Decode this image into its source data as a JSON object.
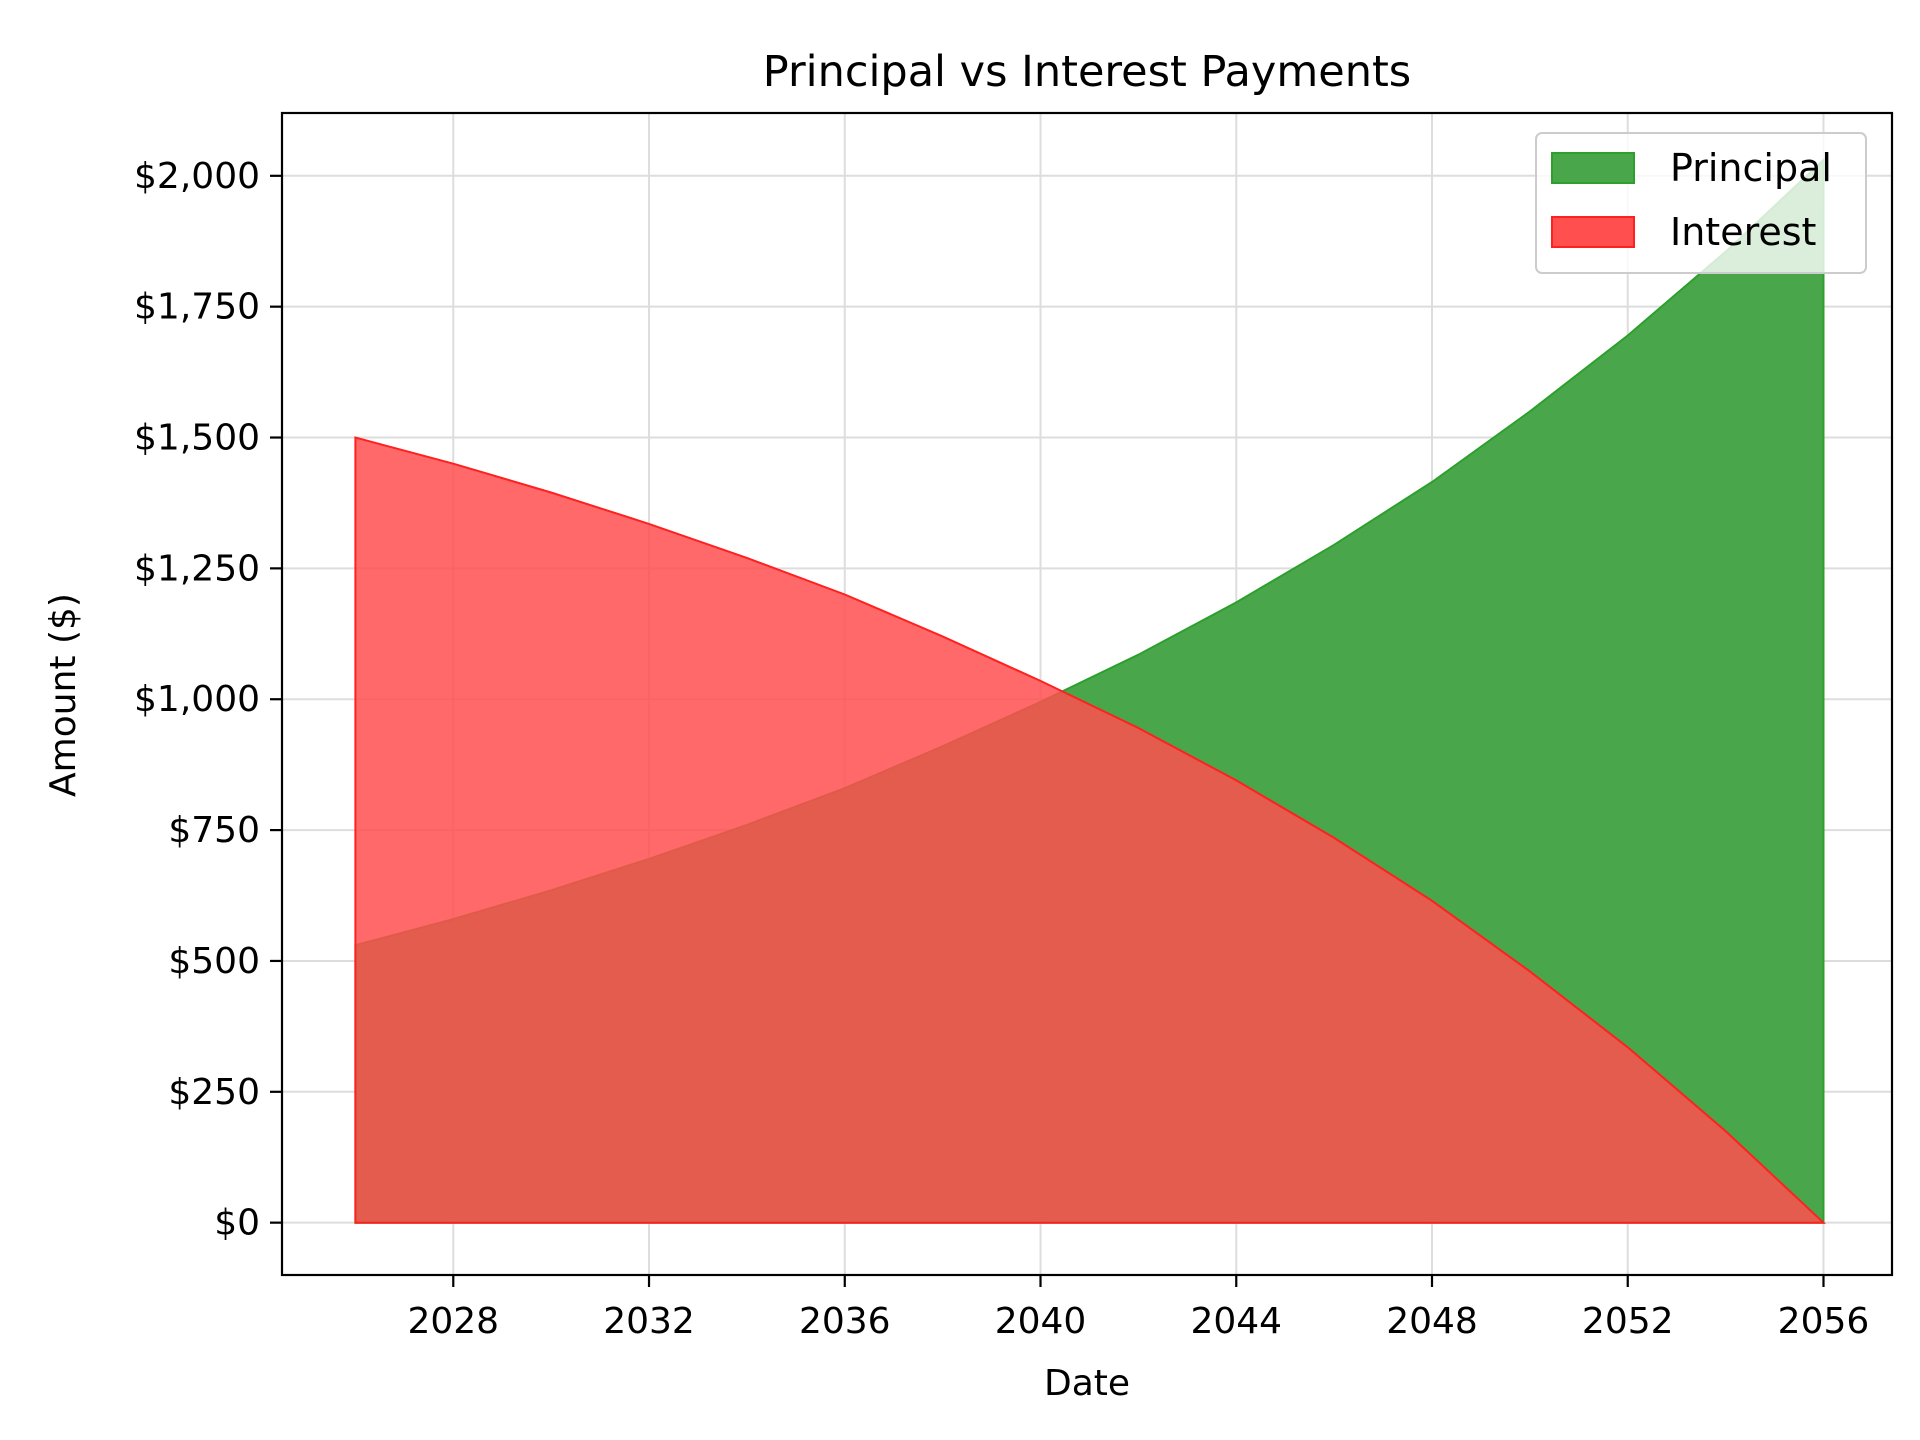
{
  "chart_data": {
    "type": "area",
    "title": "Principal vs Interest Payments",
    "xlabel": "Date",
    "ylabel": "Amount ($)",
    "xlim": [
      2024.5,
      2057.4
    ],
    "ylim": [
      -100,
      2120
    ],
    "x_ticks": [
      2028,
      2032,
      2036,
      2040,
      2044,
      2048,
      2052,
      2056
    ],
    "x_tick_labels": [
      "2028",
      "2032",
      "2036",
      "2040",
      "2044",
      "2048",
      "2052",
      "2056"
    ],
    "y_ticks": [
      0,
      250,
      500,
      750,
      1000,
      1250,
      1500,
      1750,
      2000
    ],
    "y_tick_labels": [
      "$0",
      "$250",
      "$500",
      "$750",
      "$1,000",
      "$1,250",
      "$1,500",
      "$1,750",
      "$2,000"
    ],
    "grid": true,
    "legend_position": "top-right",
    "series": [
      {
        "name": "Principal",
        "color": "#2ca02c",
        "fill_color": "#4aa64a",
        "x": [
          2026,
          2028,
          2030,
          2032,
          2034,
          2036,
          2038,
          2040,
          2042,
          2044,
          2046,
          2048,
          2050,
          2052,
          2054,
          2056
        ],
        "values": [
          530,
          580,
          635,
          695,
          760,
          830,
          910,
          995,
          1085,
          1185,
          1295,
          1415,
          1550,
          1695,
          1855,
          2030
        ]
      },
      {
        "name": "Interest",
        "color": "#ff2020",
        "fill_color": "#ff4f4f",
        "x": [
          2026,
          2028,
          2030,
          2032,
          2034,
          2036,
          2038,
          2040,
          2042,
          2044,
          2046,
          2048,
          2050,
          2052,
          2054,
          2056
        ],
        "values": [
          1500,
          1450,
          1395,
          1335,
          1270,
          1200,
          1120,
          1035,
          945,
          845,
          735,
          615,
          480,
          335,
          175,
          0
        ]
      }
    ]
  }
}
